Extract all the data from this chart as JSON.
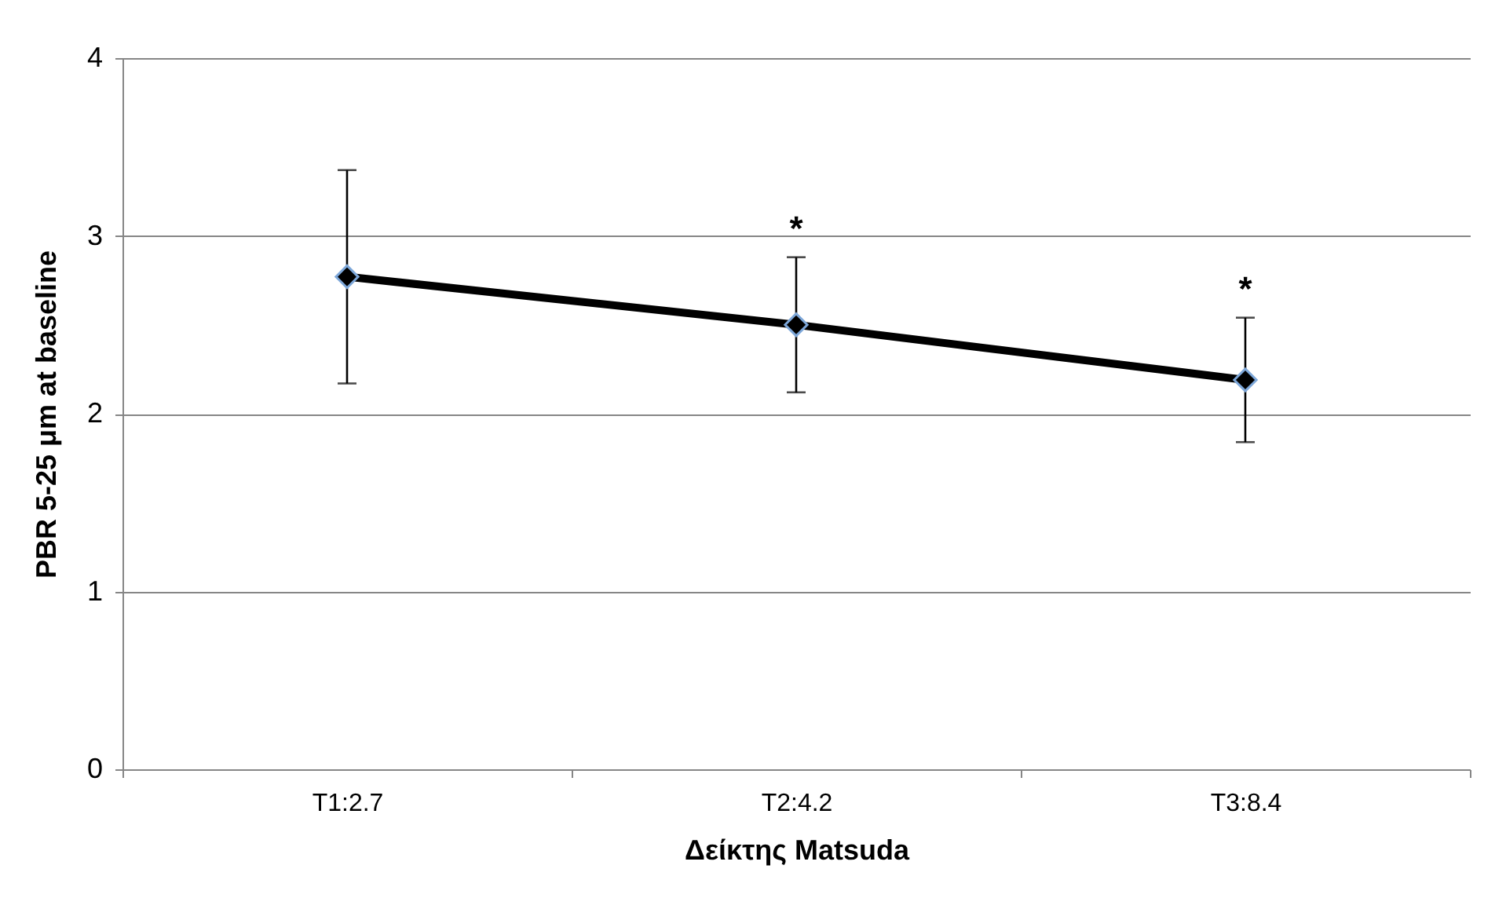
{
  "chart_data": {
    "type": "line",
    "xlabel": "Δείκτης Matsuda",
    "ylabel": "PBR 5-25 μm at baseline",
    "categories": [
      "T1:2.7",
      "T2:4.2",
      "T3:8.4"
    ],
    "series": [
      {
        "color": "#000000",
        "values": [
          2.77,
          2.5,
          2.19
        ],
        "errors": [
          [
            2.17,
            3.37
          ],
          [
            2.12,
            2.88
          ],
          [
            1.84,
            2.54
          ]
        ]
      }
    ],
    "ylim": [
      0,
      4
    ],
    "yticks": [
      0,
      1,
      2,
      3,
      4
    ],
    "grid": "y",
    "marker": "diamond",
    "line_style": "solid",
    "annotations": [
      "*",
      "*"
    ]
  }
}
